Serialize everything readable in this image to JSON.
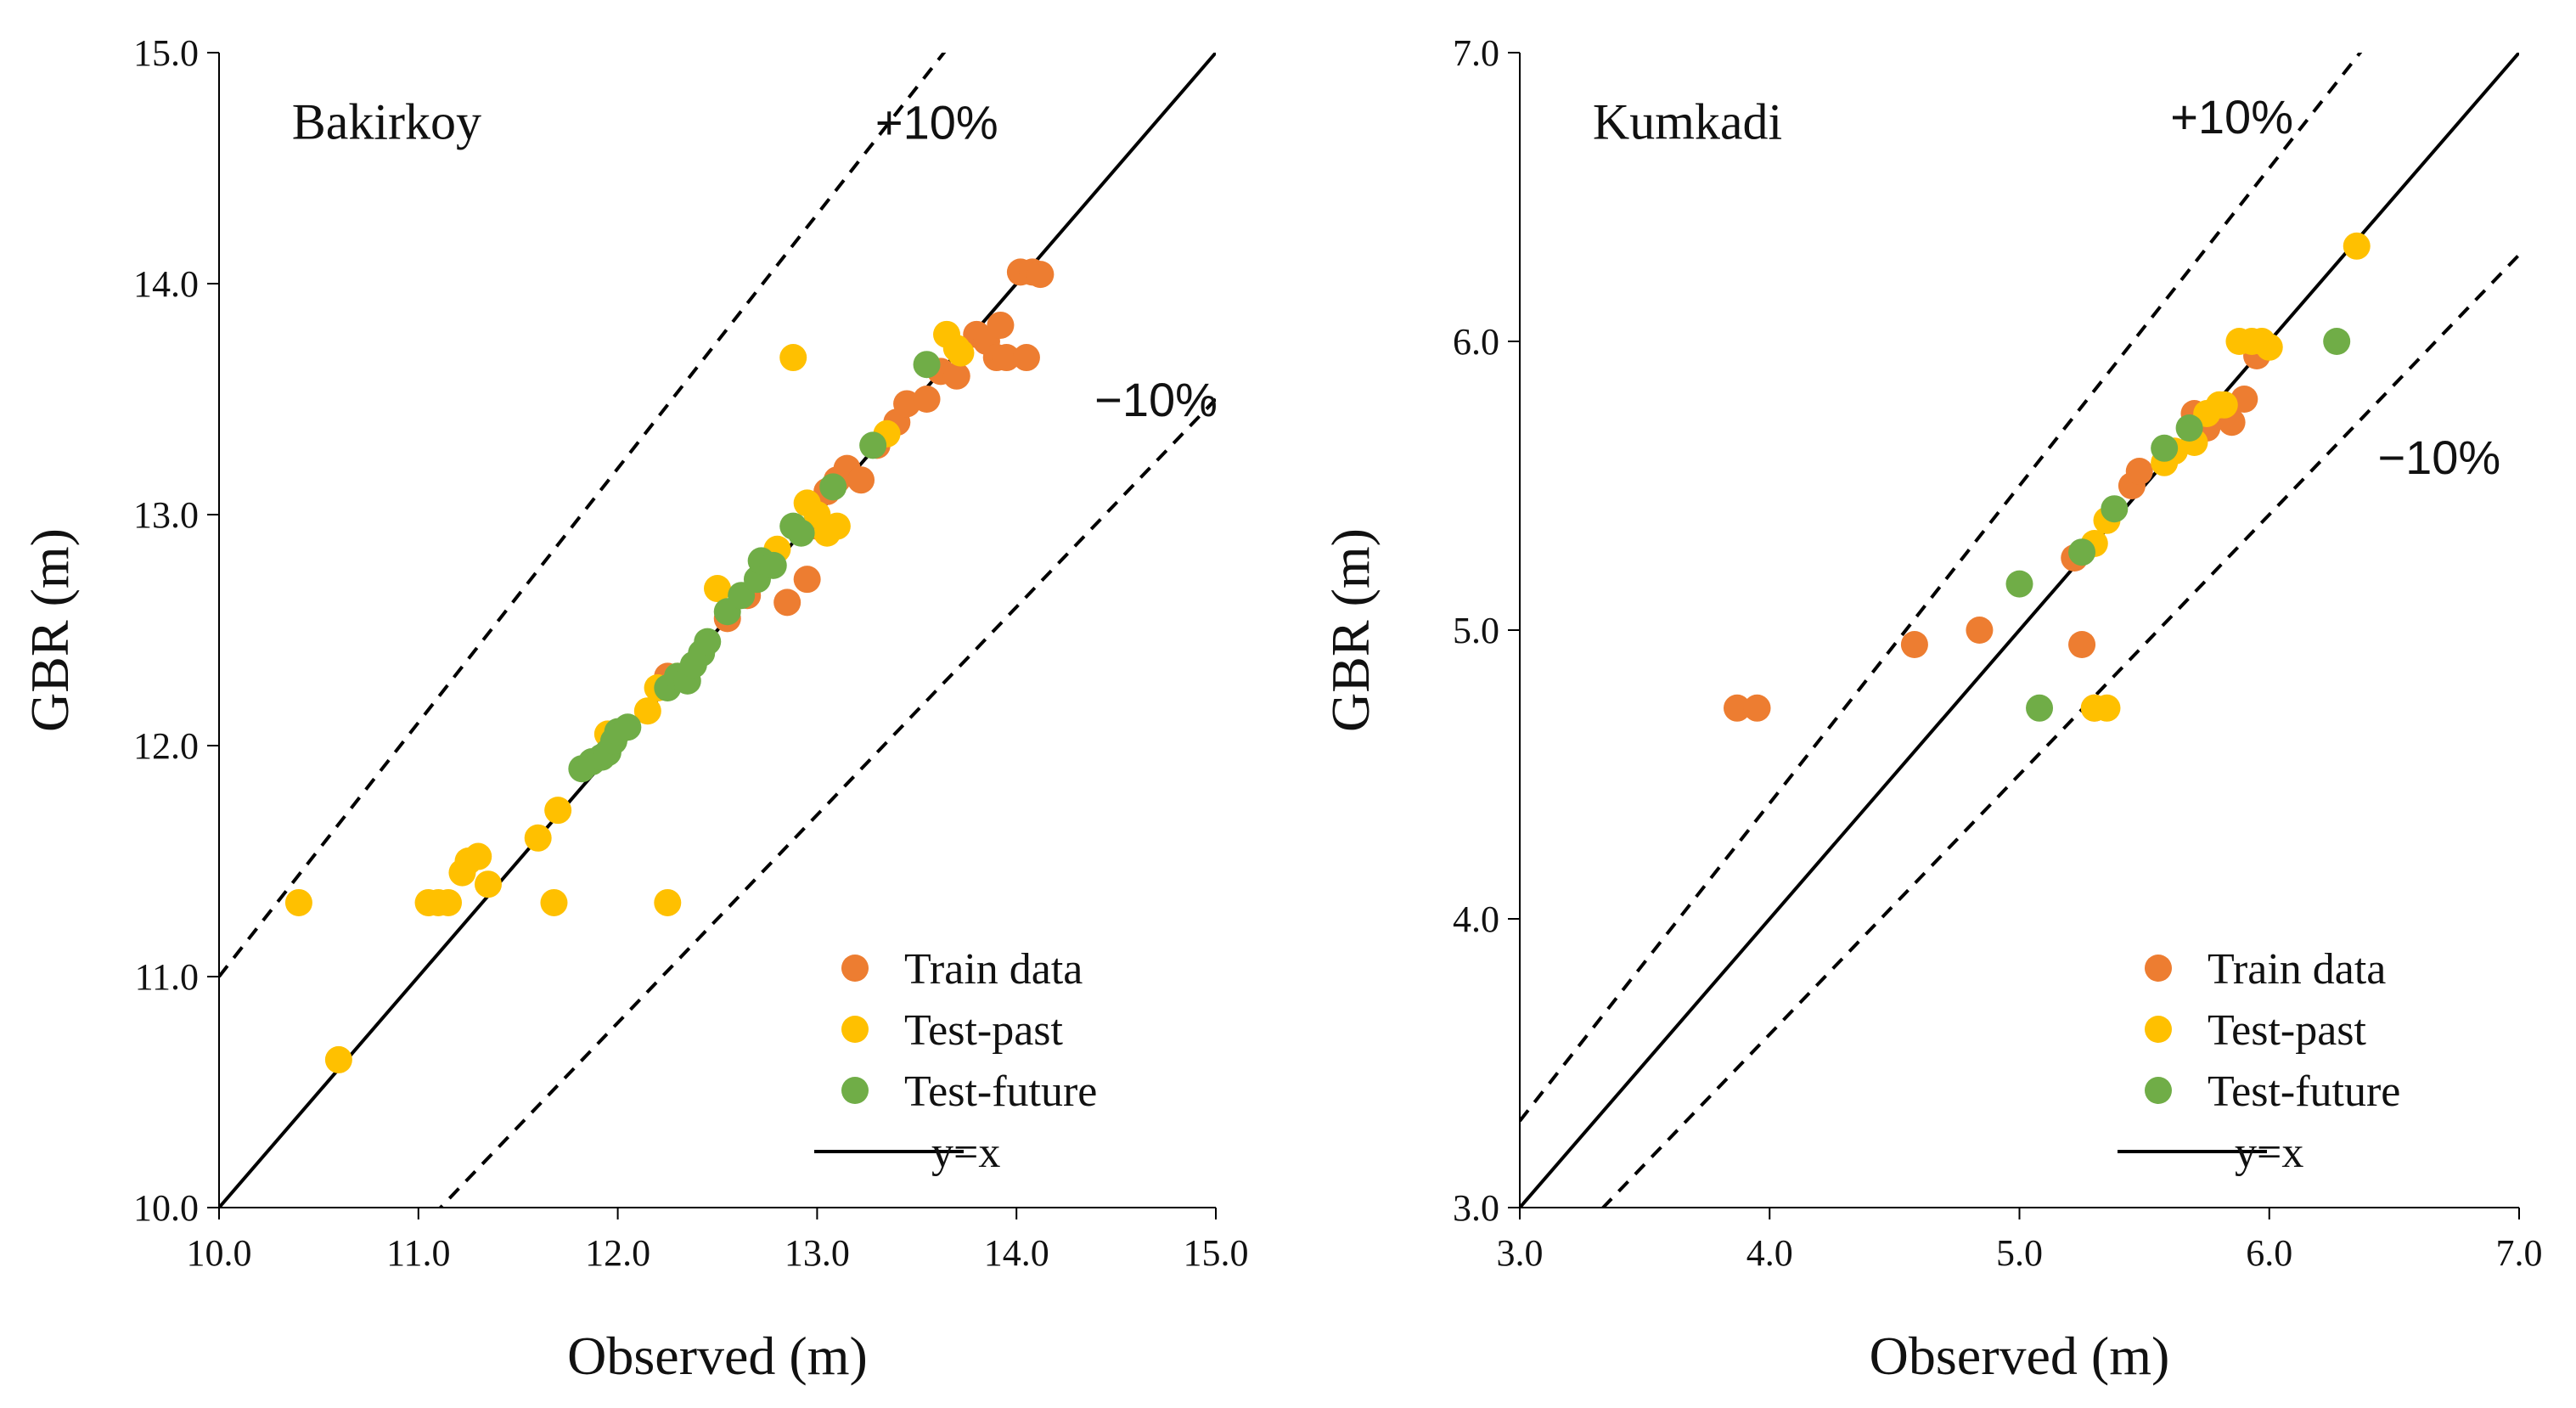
{
  "chart_data": [
    {
      "type": "scatter",
      "panel_label": "Bakirkoy",
      "xlabel": "Observed (m)",
      "ylabel": "GBR (m)",
      "xlim": [
        10.0,
        15.0
      ],
      "ylim": [
        10.0,
        15.0
      ],
      "xticks": [
        "10.0",
        "11.0",
        "12.0",
        "13.0",
        "14.0",
        "15.0"
      ],
      "yticks": [
        "10.0",
        "11.0",
        "12.0",
        "13.0",
        "14.0",
        "15.0"
      ],
      "grid": false,
      "legend_position": "bottom-right",
      "annotations": {
        "upper": "+10%",
        "lower": "−10%"
      },
      "reference_line_label": "y=x",
      "series": [
        {
          "name": "Train data",
          "color": "#ED7D31",
          "points": [
            [
              12.55,
              12.55
            ],
            [
              12.65,
              12.65
            ],
            [
              12.85,
              12.62
            ],
            [
              12.95,
              12.72
            ],
            [
              13.0,
              12.95
            ],
            [
              13.05,
              13.1
            ],
            [
              13.1,
              13.15
            ],
            [
              13.15,
              13.2
            ],
            [
              13.22,
              13.15
            ],
            [
              13.3,
              13.3
            ],
            [
              13.4,
              13.4
            ],
            [
              13.45,
              13.48
            ],
            [
              13.55,
              13.5
            ],
            [
              13.62,
              13.62
            ],
            [
              13.7,
              13.6
            ],
            [
              13.8,
              13.78
            ],
            [
              13.85,
              13.75
            ],
            [
              13.92,
              13.82
            ],
            [
              13.9,
              13.68
            ],
            [
              13.95,
              13.68
            ],
            [
              14.05,
              13.68
            ],
            [
              14.02,
              14.05
            ],
            [
              14.08,
              14.05
            ],
            [
              14.12,
              14.04
            ],
            [
              12.25,
              12.3
            ]
          ]
        },
        {
          "name": "Test-past",
          "color": "#FFC000",
          "points": [
            [
              10.4,
              11.32
            ],
            [
              10.6,
              10.64
            ],
            [
              11.05,
              11.32
            ],
            [
              11.1,
              11.32
            ],
            [
              11.15,
              11.32
            ],
            [
              11.22,
              11.45
            ],
            [
              11.25,
              11.5
            ],
            [
              11.3,
              11.52
            ],
            [
              11.35,
              11.4
            ],
            [
              11.6,
              11.6
            ],
            [
              11.68,
              11.32
            ],
            [
              11.7,
              11.72
            ],
            [
              12.25,
              11.32
            ],
            [
              11.95,
              12.05
            ],
            [
              12.15,
              12.15
            ],
            [
              12.2,
              12.25
            ],
            [
              12.3,
              12.3
            ],
            [
              12.5,
              12.68
            ],
            [
              12.88,
              13.68
            ],
            [
              12.8,
              12.85
            ],
            [
              12.95,
              13.05
            ],
            [
              13.0,
              13.0
            ],
            [
              13.05,
              12.92
            ],
            [
              13.1,
              12.95
            ],
            [
              13.35,
              13.35
            ],
            [
              13.65,
              13.78
            ],
            [
              13.7,
              13.72
            ],
            [
              13.72,
              13.7
            ]
          ]
        },
        {
          "name": "Test-future",
          "color": "#70AD47",
          "points": [
            [
              11.82,
              11.9
            ],
            [
              11.87,
              11.93
            ],
            [
              11.92,
              11.95
            ],
            [
              11.95,
              11.97
            ],
            [
              11.98,
              12.02
            ],
            [
              12.0,
              12.06
            ],
            [
              12.05,
              12.08
            ],
            [
              12.25,
              12.25
            ],
            [
              12.3,
              12.3
            ],
            [
              12.35,
              12.28
            ],
            [
              12.38,
              12.35
            ],
            [
              12.42,
              12.4
            ],
            [
              12.45,
              12.45
            ],
            [
              12.55,
              12.58
            ],
            [
              12.62,
              12.65
            ],
            [
              12.7,
              12.72
            ],
            [
              12.72,
              12.8
            ],
            [
              12.78,
              12.78
            ],
            [
              12.88,
              12.95
            ],
            [
              12.92,
              12.92
            ],
            [
              13.08,
              13.12
            ],
            [
              13.28,
              13.3
            ],
            [
              13.55,
              13.65
            ]
          ]
        }
      ]
    },
    {
      "type": "scatter",
      "panel_label": "Kumkadi",
      "xlabel": "Observed (m)",
      "ylabel": "GBR (m)",
      "xlim": [
        3.0,
        7.0
      ],
      "ylim": [
        3.0,
        7.0
      ],
      "xticks": [
        "3.0",
        "4.0",
        "5.0",
        "6.0",
        "7.0"
      ],
      "yticks": [
        "3.0",
        "4.0",
        "5.0",
        "6.0",
        "7.0"
      ],
      "grid": false,
      "legend_position": "bottom-right",
      "annotations": {
        "upper": "+10%",
        "lower": "−10%"
      },
      "reference_line_label": "y=x",
      "series": [
        {
          "name": "Train data",
          "color": "#ED7D31",
          "points": [
            [
              3.87,
              4.73
            ],
            [
              3.95,
              4.73
            ],
            [
              4.58,
              4.95
            ],
            [
              4.84,
              5.0
            ],
            [
              5.25,
              4.95
            ],
            [
              5.3,
              4.73
            ],
            [
              5.22,
              5.25
            ],
            [
              5.45,
              5.5
            ],
            [
              5.48,
              5.55
            ],
            [
              5.7,
              5.75
            ],
            [
              5.75,
              5.7
            ],
            [
              5.85,
              5.72
            ],
            [
              5.9,
              5.8
            ],
            [
              5.95,
              5.95
            ]
          ]
        },
        {
          "name": "Test-past",
          "color": "#FFC000",
          "points": [
            [
              5.3,
              4.73
            ],
            [
              5.35,
              4.73
            ],
            [
              5.3,
              5.3
            ],
            [
              5.35,
              5.38
            ],
            [
              5.58,
              5.58
            ],
            [
              5.62,
              5.62
            ],
            [
              5.7,
              5.65
            ],
            [
              5.75,
              5.75
            ],
            [
              5.8,
              5.78
            ],
            [
              5.82,
              5.78
            ],
            [
              5.88,
              6.0
            ],
            [
              5.93,
              6.0
            ],
            [
              5.97,
              6.0
            ],
            [
              6.0,
              5.98
            ],
            [
              6.35,
              6.33
            ]
          ]
        },
        {
          "name": "Test-future",
          "color": "#70AD47",
          "points": [
            [
              5.0,
              5.16
            ],
            [
              5.08,
              4.73
            ],
            [
              5.25,
              5.27
            ],
            [
              5.38,
              5.42
            ],
            [
              5.58,
              5.63
            ],
            [
              5.68,
              5.7
            ],
            [
              6.27,
              6.0
            ]
          ]
        }
      ]
    }
  ]
}
